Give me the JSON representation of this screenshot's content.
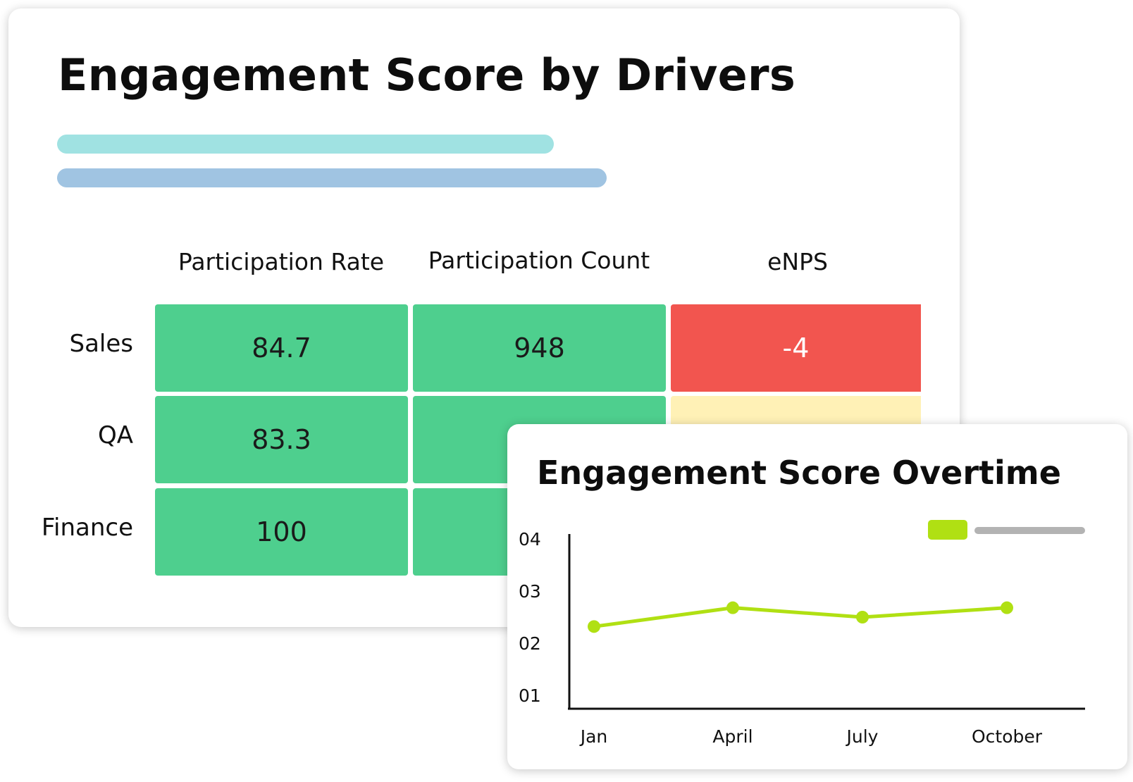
{
  "drivers_card": {
    "title": "Engagement Score by Drivers",
    "placeholder_bar_colors": [
      "#a0e2e2",
      "#a0c4e2"
    ],
    "columns": [
      "Participation Rate",
      "Participation Count",
      "eNPS"
    ],
    "rows": [
      {
        "label": "Sales",
        "cells": [
          "84.7",
          "948",
          "-4"
        ]
      },
      {
        "label": "QA",
        "cells": [
          "83.3",
          "",
          ""
        ]
      },
      {
        "label": "Finance",
        "cells": [
          "100",
          "",
          ""
        ]
      }
    ],
    "cell_colors": {
      "green": "#4ecf8e",
      "red": "#f2554f",
      "yellow": "#fff1b6"
    }
  },
  "chart_card": {
    "title": "Engagement Score Overtime",
    "legend_swatch_color": "#b0e013",
    "legend_placeholder_color": "#b3b3b3"
  },
  "chart_data": {
    "type": "line",
    "title": "Engagement Score Overtime",
    "xlabel": "",
    "ylabel": "",
    "categories": [
      "Jan",
      "April",
      "July",
      "October"
    ],
    "y_tick_labels": [
      "01",
      "02",
      "03",
      "04"
    ],
    "ylim": [
      0.6,
      4
    ],
    "series": [
      {
        "color": "#b0e013",
        "values": [
          2.32,
          2.68,
          2.5,
          2.68
        ]
      }
    ],
    "grid": false,
    "legend_position": "top-right"
  }
}
